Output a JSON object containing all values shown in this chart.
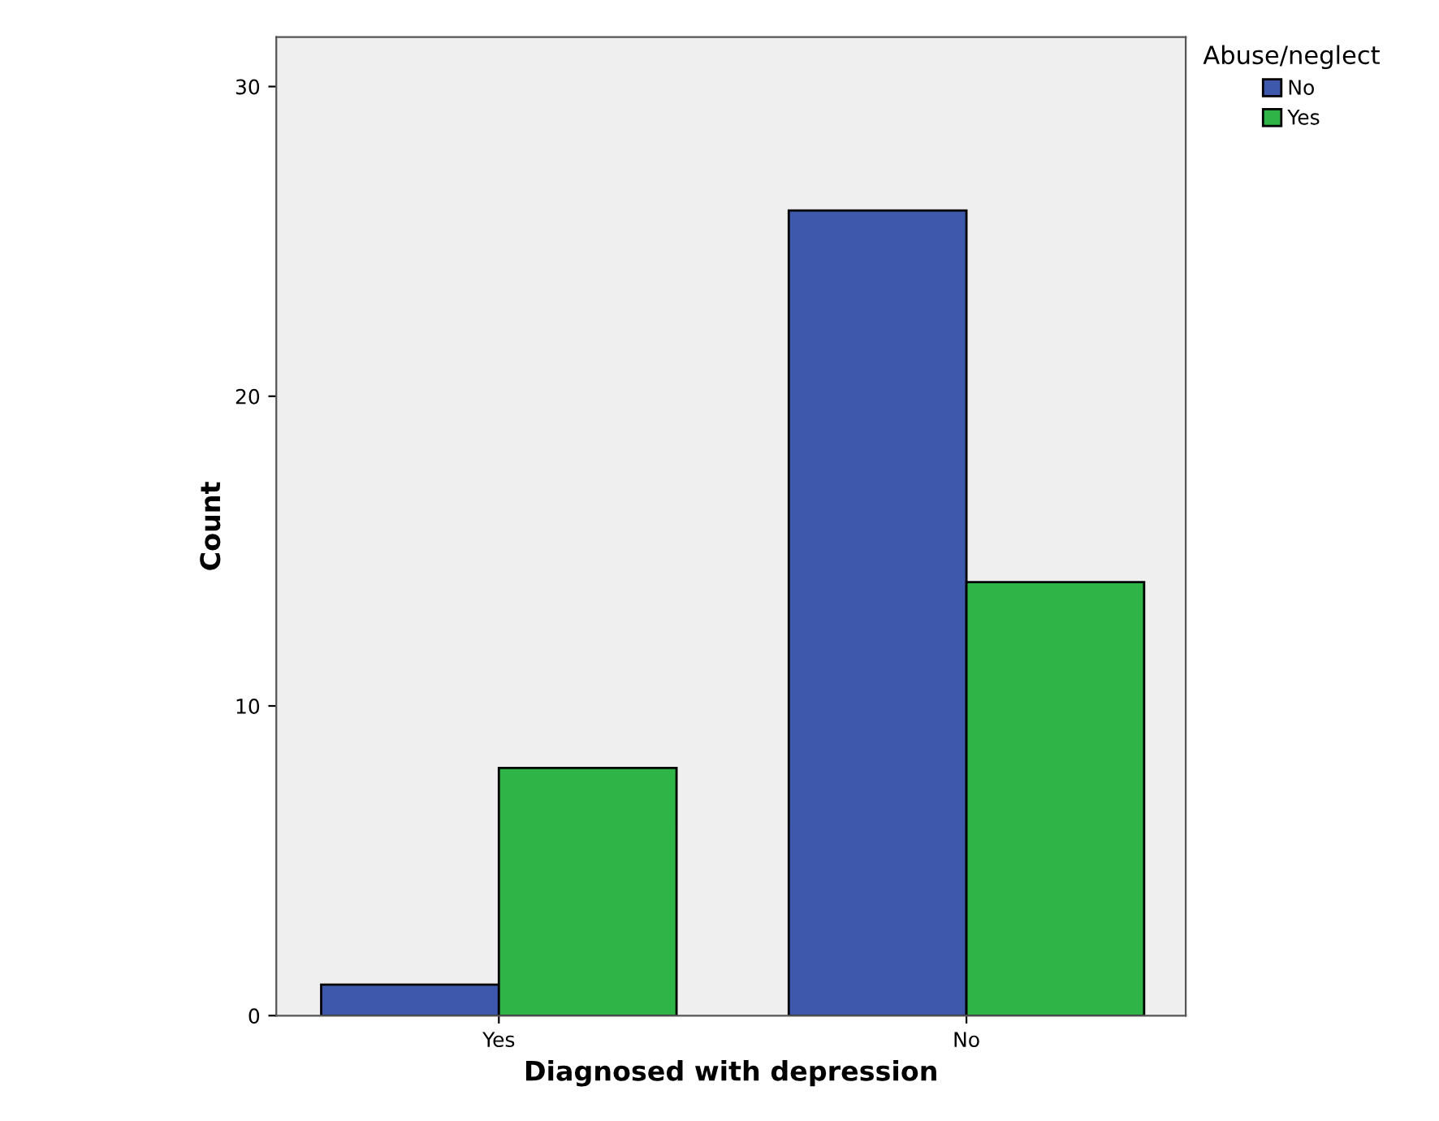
{
  "chart_data": {
    "type": "bar",
    "xlabel": "Diagnosed with depression",
    "ylabel": "Count",
    "legend_title": "Abuse/neglect",
    "categories": [
      "Yes",
      "No"
    ],
    "series": [
      {
        "name": "No",
        "color": "#3e58ac",
        "values": [
          1,
          26
        ]
      },
      {
        "name": "Yes",
        "color": "#2fb547",
        "values": [
          8,
          14
        ]
      }
    ],
    "ylim": [
      0,
      31.6
    ],
    "yticks": [
      0,
      10,
      20,
      30
    ],
    "grid": false,
    "legend": "top right"
  }
}
